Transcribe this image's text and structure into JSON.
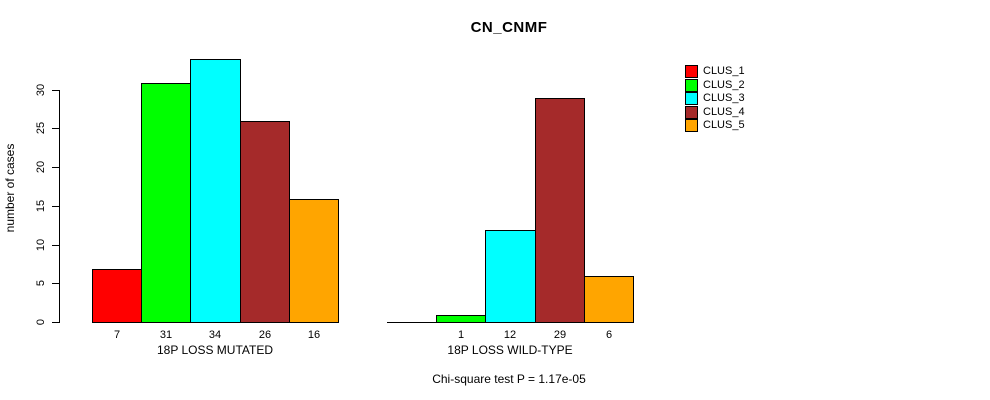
{
  "title": "CN_CNMF",
  "chart_data": {
    "type": "bar",
    "title": "CN_CNMF",
    "ylabel": "number of cases",
    "xlabel": "",
    "ylim": [
      0,
      34
    ],
    "yticks": [
      0,
      5,
      10,
      15,
      20,
      25,
      30
    ],
    "grid": false,
    "legend_position": "right",
    "categories": [
      "18P LOSS MUTATED",
      "18P LOSS WILD-TYPE"
    ],
    "series": [
      {
        "name": "CLUS_1",
        "color": "#FF0000",
        "values": [
          7,
          0
        ]
      },
      {
        "name": "CLUS_2",
        "color": "#00FF00",
        "values": [
          31,
          1
        ]
      },
      {
        "name": "CLUS_3",
        "color": "#00FFFF",
        "values": [
          34,
          12
        ]
      },
      {
        "name": "CLUS_4",
        "color": "#A52A2A",
        "values": [
          26,
          29
        ]
      },
      {
        "name": "CLUS_5",
        "color": "#FFA500",
        "values": [
          16,
          6
        ]
      }
    ],
    "value_labels": [
      [
        "7",
        "31",
        "34",
        "26",
        "16"
      ],
      [
        "",
        "1",
        "12",
        "29",
        "6"
      ]
    ],
    "annotation": "Chi-square test P = 1.17e-05"
  }
}
